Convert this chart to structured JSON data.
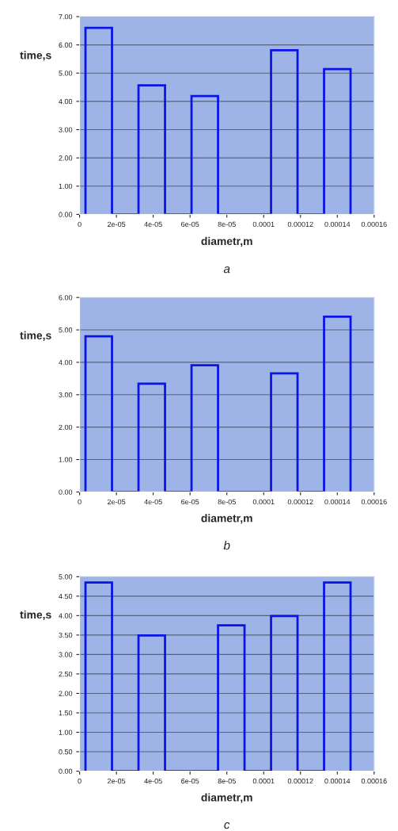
{
  "chart_data": [
    {
      "type": "histogram",
      "title": "a",
      "xlabel": "diametr,m",
      "ylabel": "time,s",
      "color": "#0a14e6",
      "bins": [
        3.2e-06,
        1.76e-05,
        3.2e-05,
        4.64e-05,
        6.08e-05,
        7.52e-05,
        8.96e-05,
        0.000104,
        0.0001184,
        0.0001328,
        0.0001472
      ],
      "values": [
        6.6,
        0,
        4.57,
        0,
        4.19,
        0,
        0,
        5.81,
        0,
        5.14
      ],
      "xlim": [
        0,
        0.00016
      ],
      "ylim": [
        0,
        7
      ],
      "xticks": [
        0,
        {
          "value": 2e-05,
          "label": "2e-05"
        },
        {
          "value": 4e-05,
          "label": "4e-05"
        },
        {
          "value": 6e-05,
          "label": "6e-05"
        },
        {
          "value": 8e-05,
          "label": "8e-05"
        },
        0.0001,
        0.00012,
        0.00014,
        0.00016
      ],
      "yticks": [
        {
          "value": 0,
          "label": "0.00"
        },
        {
          "value": 1,
          "label": "1.00"
        },
        {
          "value": 2,
          "label": "2.00"
        },
        {
          "value": 3,
          "label": "3.00"
        },
        {
          "value": 4,
          "label": "4.00"
        },
        {
          "value": 5,
          "label": "5.00"
        },
        {
          "value": 6,
          "label": "6.00"
        },
        {
          "value": 7,
          "label": "7.00"
        }
      ],
      "grid": "y"
    },
    {
      "type": "histogram",
      "title": "b",
      "xlabel": "diametr,m",
      "ylabel": "time,s",
      "color": "#0a14e6",
      "bins": [
        3.2e-06,
        1.76e-05,
        3.2e-05,
        4.64e-05,
        6.08e-05,
        7.52e-05,
        8.96e-05,
        0.000104,
        0.0001184,
        0.0001328,
        0.0001472
      ],
      "values": [
        4.8,
        0,
        3.34,
        0,
        3.91,
        0,
        0,
        3.66,
        0,
        5.41
      ],
      "xlim": [
        0,
        0.00016
      ],
      "ylim": [
        0,
        6
      ],
      "xticks": [
        0,
        {
          "value": 2e-05,
          "label": "2e-05"
        },
        {
          "value": 4e-05,
          "label": "4e-05"
        },
        {
          "value": 6e-05,
          "label": "6e-05"
        },
        {
          "value": 8e-05,
          "label": "8e-05"
        },
        0.0001,
        0.00012,
        0.00014,
        0.00016
      ],
      "yticks": [
        {
          "value": 0,
          "label": "0.00"
        },
        {
          "value": 1,
          "label": "1.00"
        },
        {
          "value": 2,
          "label": "2.00"
        },
        {
          "value": 3,
          "label": "3.00"
        },
        {
          "value": 4,
          "label": "4.00"
        },
        {
          "value": 5,
          "label": "5.00"
        },
        {
          "value": 6,
          "label": "6.00"
        }
      ],
      "grid": "y"
    },
    {
      "type": "histogram",
      "title": "c",
      "xlabel": "diametr,m",
      "ylabel": "time,s",
      "color": "#0a14e6",
      "bins": [
        3.2e-06,
        1.76e-05,
        3.2e-05,
        4.64e-05,
        6.08e-05,
        7.52e-05,
        8.96e-05,
        0.000104,
        0.0001184,
        0.0001328,
        0.0001472
      ],
      "values": [
        4.85,
        0,
        3.49,
        0,
        0,
        3.75,
        0,
        3.99,
        0,
        4.85
      ],
      "xlim": [
        0,
        0.00016
      ],
      "ylim": [
        0,
        5
      ],
      "xticks": [
        0,
        {
          "value": 2e-05,
          "label": "2e-05"
        },
        {
          "value": 4e-05,
          "label": "4e-05"
        },
        {
          "value": 6e-05,
          "label": "6e-05"
        },
        {
          "value": 8e-05,
          "label": "8e-05"
        },
        0.0001,
        0.00012,
        0.00014,
        0.00016
      ],
      "yticks": [
        {
          "value": 0,
          "label": "0.00"
        },
        {
          "value": 0.5,
          "label": "0.50"
        },
        {
          "value": 1,
          "label": "1.00"
        },
        {
          "value": 1.5,
          "label": "1.50"
        },
        {
          "value": 2,
          "label": "2.00"
        },
        {
          "value": 2.5,
          "label": "2.50"
        },
        {
          "value": 3,
          "label": "3.00"
        },
        {
          "value": 3.5,
          "label": "3.50"
        },
        {
          "value": 4,
          "label": "4.00"
        },
        {
          "value": 4.5,
          "label": "4.50"
        },
        {
          "value": 5,
          "label": "5.00"
        }
      ],
      "grid": "y"
    }
  ]
}
